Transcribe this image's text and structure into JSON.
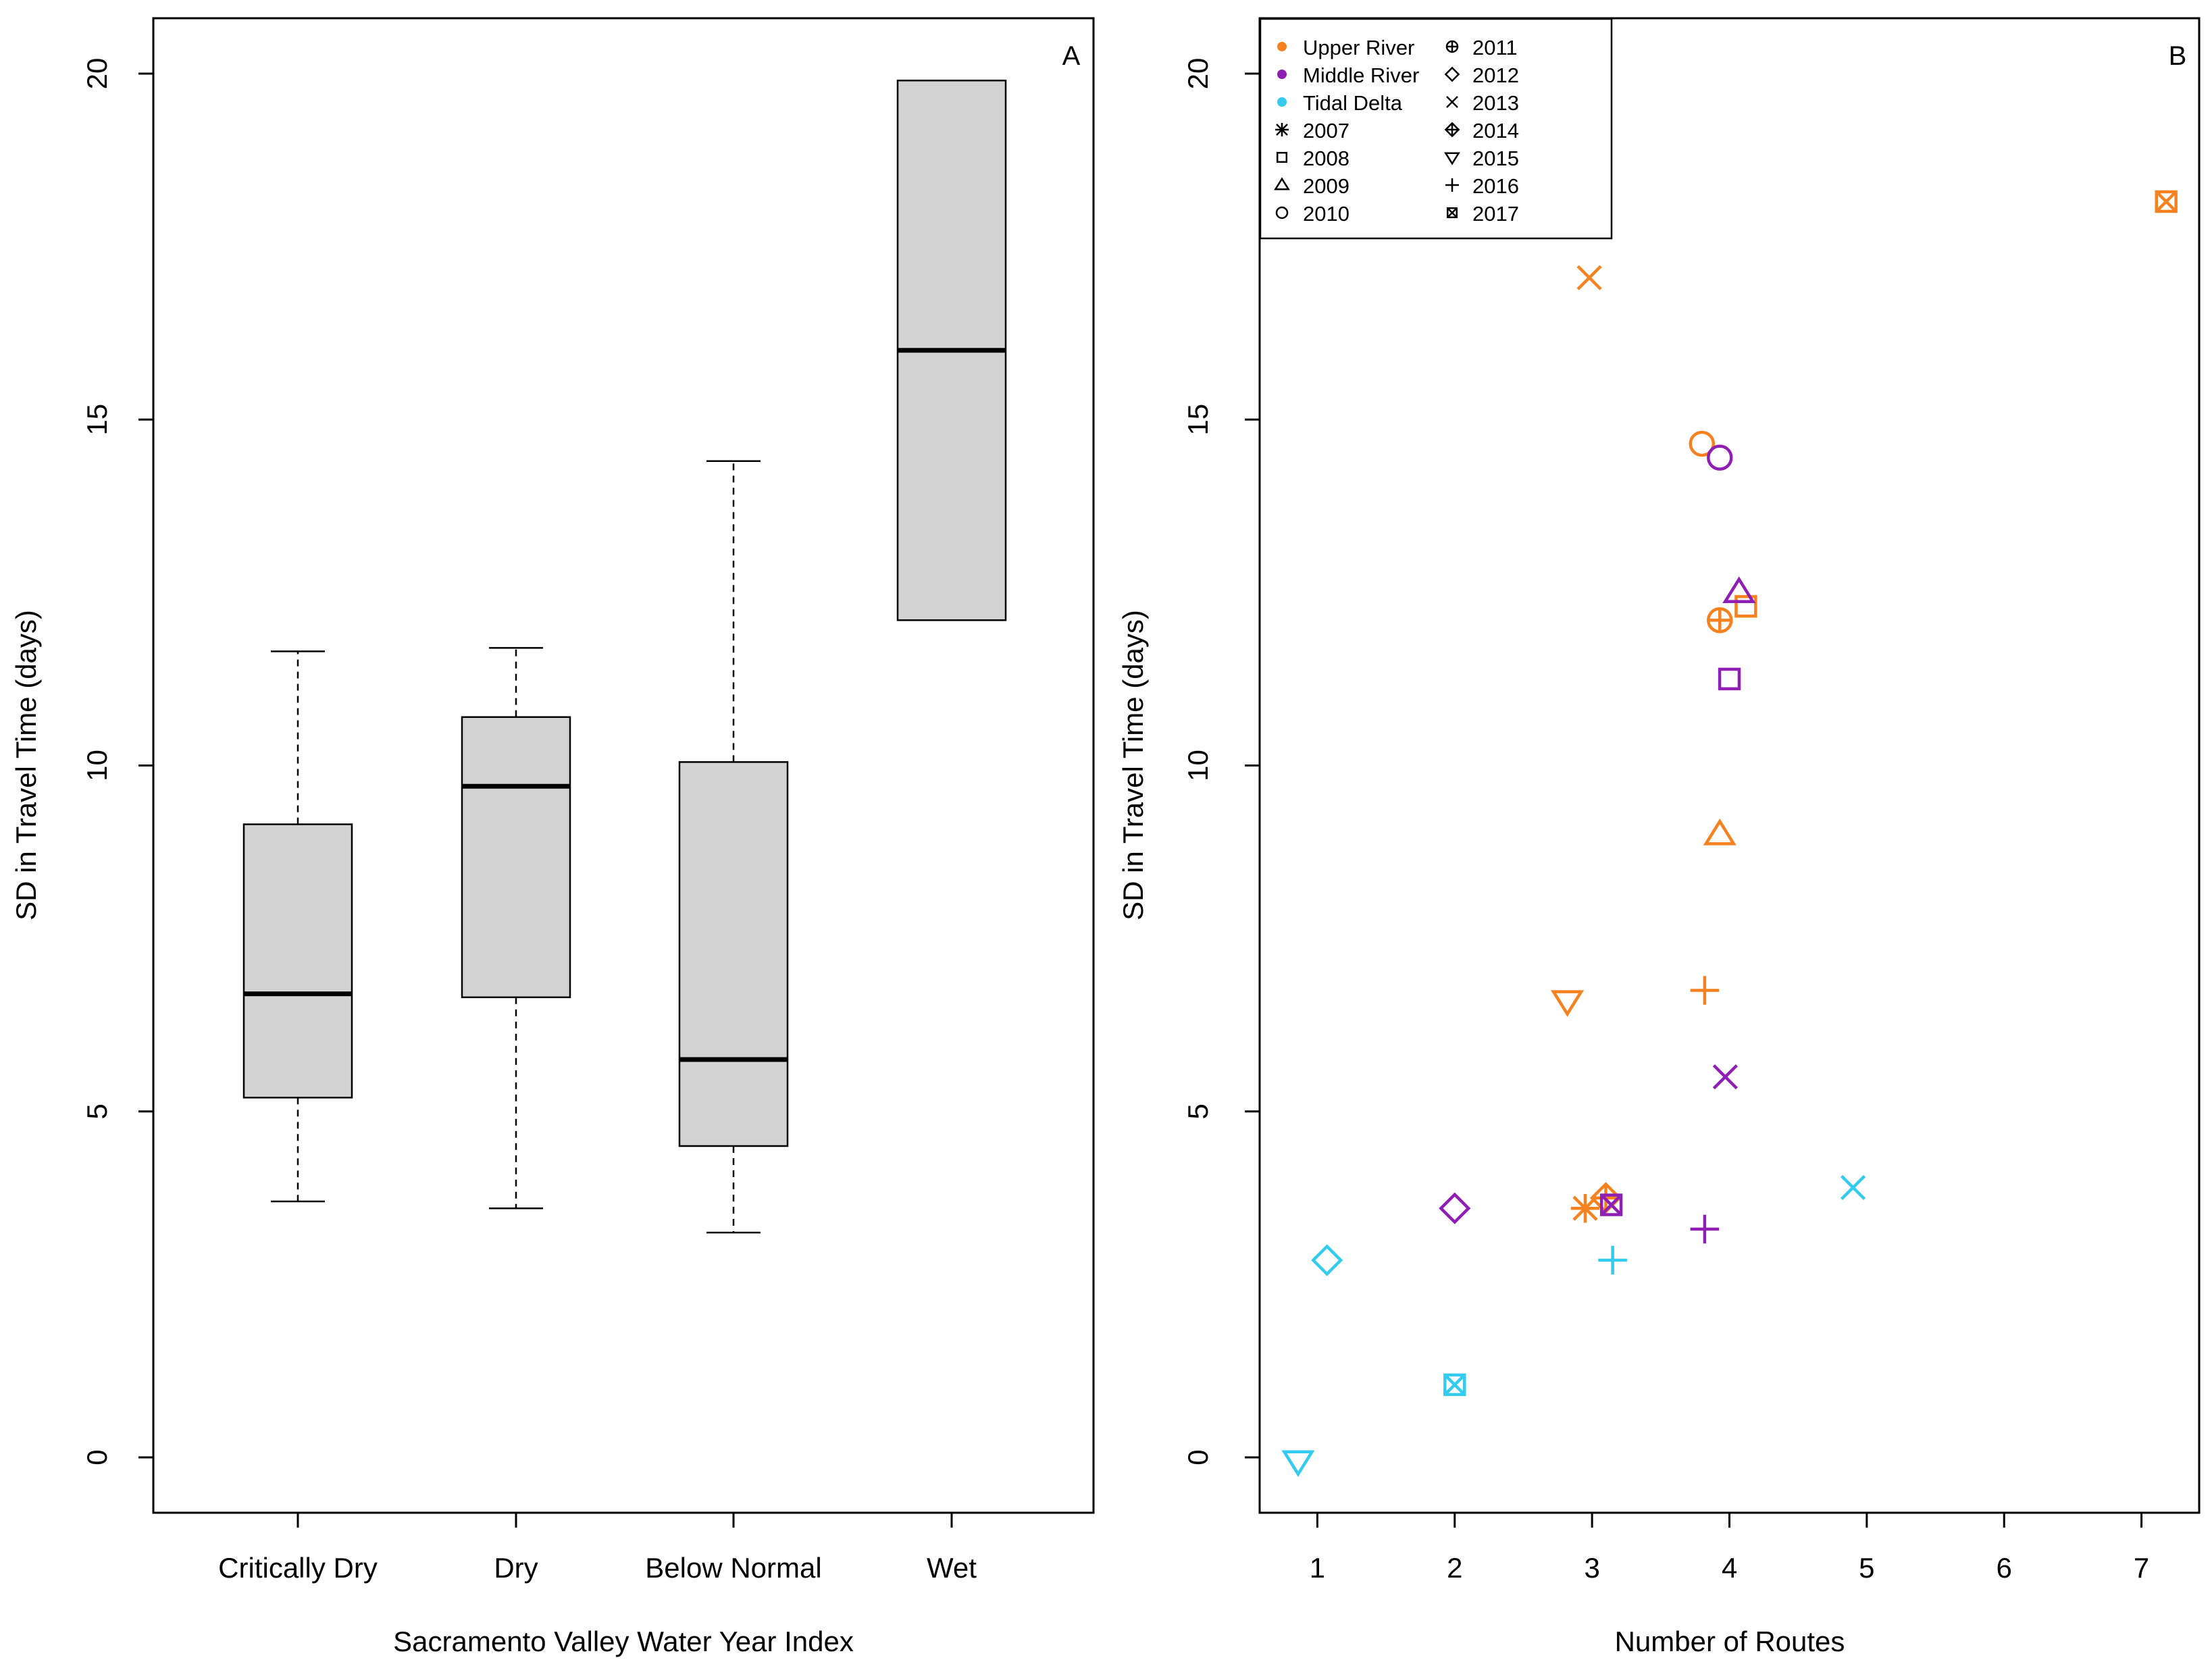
{
  "colors": {
    "upper_river": "#F5821F",
    "middle_river": "#8E1EB4",
    "tidal_delta": "#33CCEE",
    "box_fill": "#D3D3D3"
  },
  "chart_data": [
    {
      "type": "boxplot",
      "panel_label": "A",
      "xlabel": "Sacramento Valley Water Year Index",
      "ylabel": "SD in Travel Time (days)",
      "ylim": [
        -0.8,
        20.8
      ],
      "yticks": [
        "0",
        "5",
        "10",
        "15",
        "20"
      ],
      "categories": [
        "Critically Dry",
        "Dry",
        "Below Normal",
        "Wet"
      ],
      "boxes": [
        {
          "whisker_low": 3.7,
          "q1": 5.2,
          "median": 6.7,
          "q3": 9.15,
          "whisker_high": 11.65
        },
        {
          "whisker_low": 3.6,
          "q1": 6.65,
          "median": 9.7,
          "q3": 10.7,
          "whisker_high": 11.7
        },
        {
          "whisker_low": 3.25,
          "q1": 4.5,
          "median": 5.75,
          "q3": 10.05,
          "whisker_high": 14.4
        },
        {
          "whisker_low": null,
          "q1": 12.1,
          "median": 16.0,
          "q3": 19.9,
          "whisker_high": null
        }
      ]
    },
    {
      "type": "scatter",
      "panel_label": "B",
      "xlabel": "Number of Routes",
      "ylabel": "SD in Travel Time (days)",
      "xlim": [
        0.58,
        7.42
      ],
      "ylim": [
        -0.8,
        20.8
      ],
      "xticks": [
        "1",
        "2",
        "3",
        "4",
        "5",
        "6",
        "7"
      ],
      "yticks": [
        "0",
        "5",
        "10",
        "15",
        "20"
      ],
      "legend": {
        "regions": [
          {
            "label": "Upper River",
            "color_key": "upper_river"
          },
          {
            "label": "Middle River",
            "color_key": "middle_river"
          },
          {
            "label": "Tidal Delta",
            "color_key": "tidal_delta"
          }
        ],
        "years": [
          {
            "label": "2007",
            "symbol": "asterisk"
          },
          {
            "label": "2008",
            "symbol": "square"
          },
          {
            "label": "2009",
            "symbol": "triangle"
          },
          {
            "label": "2010",
            "symbol": "circle"
          },
          {
            "label": "2011",
            "symbol": "circle-plus"
          },
          {
            "label": "2012",
            "symbol": "diamond"
          },
          {
            "label": "2013",
            "symbol": "cross"
          },
          {
            "label": "2014",
            "symbol": "diamond-plus"
          },
          {
            "label": "2015",
            "symbol": "triangle-down"
          },
          {
            "label": "2016",
            "symbol": "plus"
          },
          {
            "label": "2017",
            "symbol": "square-cross"
          }
        ]
      },
      "points": [
        {
          "region": "upper_river",
          "year": "2007",
          "symbol": "asterisk",
          "x": 2.95,
          "y": 3.6
        },
        {
          "region": "upper_river",
          "year": "2008",
          "symbol": "square",
          "x": 4.12,
          "y": 12.3
        },
        {
          "region": "upper_river",
          "year": "2009",
          "symbol": "triangle",
          "x": 3.93,
          "y": 9.0
        },
        {
          "region": "upper_river",
          "year": "2010",
          "symbol": "circle",
          "x": 3.8,
          "y": 14.65
        },
        {
          "region": "upper_river",
          "year": "2011",
          "symbol": "circle-plus",
          "x": 3.93,
          "y": 12.1
        },
        {
          "region": "upper_river",
          "year": "2013",
          "symbol": "cross",
          "x": 2.98,
          "y": 17.05
        },
        {
          "region": "upper_river",
          "year": "2014",
          "symbol": "diamond-plus",
          "x": 3.1,
          "y": 3.75
        },
        {
          "region": "upper_river",
          "year": "2015",
          "symbol": "triangle-down",
          "x": 2.82,
          "y": 6.6
        },
        {
          "region": "upper_river",
          "year": "2016",
          "symbol": "plus",
          "x": 3.82,
          "y": 6.75
        },
        {
          "region": "upper_river",
          "year": "2017",
          "symbol": "square-cross",
          "x": 7.18,
          "y": 18.15
        },
        {
          "region": "middle_river",
          "year": "2008",
          "symbol": "square",
          "x": 4.0,
          "y": 11.25
        },
        {
          "region": "middle_river",
          "year": "2009",
          "symbol": "triangle",
          "x": 4.07,
          "y": 12.5
        },
        {
          "region": "middle_river",
          "year": "2010",
          "symbol": "circle",
          "x": 3.93,
          "y": 14.45
        },
        {
          "region": "middle_river",
          "year": "2012",
          "symbol": "diamond",
          "x": 2.0,
          "y": 3.6
        },
        {
          "region": "middle_river",
          "year": "2013",
          "symbol": "cross",
          "x": 3.97,
          "y": 5.5
        },
        {
          "region": "middle_river",
          "year": "2016",
          "symbol": "plus",
          "x": 3.82,
          "y": 3.3
        },
        {
          "region": "middle_river",
          "year": "2017",
          "symbol": "square-cross",
          "x": 3.14,
          "y": 3.65
        },
        {
          "region": "tidal_delta",
          "year": "2012",
          "symbol": "diamond",
          "x": 1.07,
          "y": 2.85
        },
        {
          "region": "tidal_delta",
          "year": "2013",
          "symbol": "cross",
          "x": 4.9,
          "y": 3.9
        },
        {
          "region": "tidal_delta",
          "year": "2015",
          "symbol": "triangle-down",
          "x": 0.86,
          "y": -0.05
        },
        {
          "region": "tidal_delta",
          "year": "2016",
          "symbol": "plus",
          "x": 3.15,
          "y": 2.85
        },
        {
          "region": "tidal_delta",
          "year": "2017",
          "symbol": "square-cross",
          "x": 2.0,
          "y": 1.05
        }
      ]
    }
  ]
}
